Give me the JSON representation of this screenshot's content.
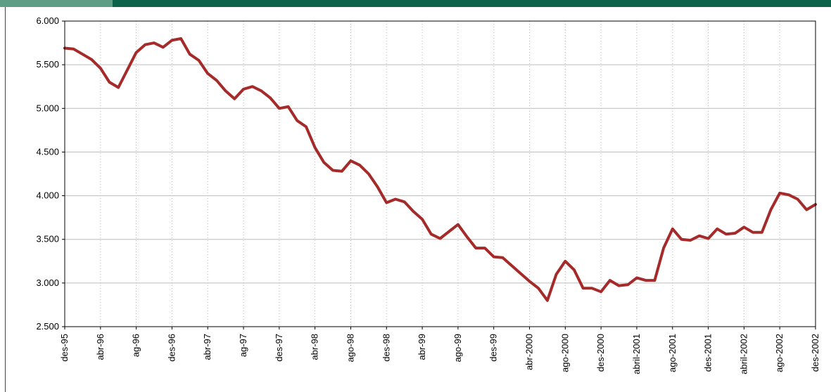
{
  "colors": {
    "header_bar": "#0b6348",
    "header_accent": "#5e9e85",
    "series_line": "#a52a2a",
    "gridline": "#bbbbbb",
    "axis": "#000000"
  },
  "chart_data": {
    "type": "line",
    "title": "",
    "xlabel": "",
    "ylabel": "",
    "ylim": [
      2500,
      6000
    ],
    "y_ticks": [
      "6.000",
      "5.500",
      "5.000",
      "4.500",
      "4.000",
      "3.500",
      "3.000",
      "2.500"
    ],
    "y_tick_values": [
      6000,
      5500,
      5000,
      4500,
      4000,
      3500,
      3000,
      2500
    ],
    "x_ticks": [
      "des-95",
      "abr-96",
      "ag-96",
      "des-96",
      "abr-97",
      "ag-97",
      "des-97",
      "abr-98",
      "ago-98",
      "des-98",
      "abr-99",
      "ago-99",
      "des-99",
      "abr-2000",
      "ago-2000",
      "des-2000",
      "abril-2001",
      "ago-2001",
      "des-2001",
      "abril-2002",
      "ago-2002",
      "des-2002"
    ],
    "grid": {
      "horizontal": true,
      "vertical": true,
      "vertical_style": "dotted"
    },
    "legend": "none",
    "series": [
      {
        "points": [
          [
            0,
            5690
          ],
          [
            1,
            5680
          ],
          [
            2,
            5620
          ],
          [
            3,
            5560
          ],
          [
            4,
            5460
          ],
          [
            5,
            5300
          ],
          [
            6,
            5240
          ],
          [
            7,
            5440
          ],
          [
            8,
            5640
          ],
          [
            9,
            5730
          ],
          [
            10,
            5750
          ],
          [
            11,
            5700
          ],
          [
            12,
            5780
          ],
          [
            13,
            5800
          ],
          [
            14,
            5620
          ],
          [
            15,
            5550
          ],
          [
            16,
            5400
          ],
          [
            17,
            5320
          ],
          [
            18,
            5200
          ],
          [
            19,
            5110
          ],
          [
            20,
            5220
          ],
          [
            21,
            5250
          ],
          [
            22,
            5200
          ],
          [
            23,
            5120
          ],
          [
            24,
            5000
          ],
          [
            25,
            5020
          ],
          [
            26,
            4860
          ],
          [
            27,
            4790
          ],
          [
            28,
            4550
          ],
          [
            29,
            4380
          ],
          [
            30,
            4290
          ],
          [
            31,
            4280
          ],
          [
            32,
            4400
          ],
          [
            33,
            4350
          ],
          [
            34,
            4250
          ],
          [
            35,
            4100
          ],
          [
            36,
            3920
          ],
          [
            37,
            3960
          ],
          [
            38,
            3930
          ],
          [
            39,
            3820
          ],
          [
            40,
            3730
          ],
          [
            41,
            3560
          ],
          [
            42,
            3510
          ],
          [
            43,
            3590
          ],
          [
            44,
            3670
          ],
          [
            45,
            3530
          ],
          [
            46,
            3400
          ],
          [
            47,
            3400
          ],
          [
            48,
            3300
          ],
          [
            49,
            3290
          ],
          [
            50,
            3200
          ],
          [
            51,
            3110
          ],
          [
            52,
            3020
          ],
          [
            53,
            2940
          ],
          [
            54,
            2800
          ],
          [
            55,
            3100
          ],
          [
            56,
            3250
          ],
          [
            57,
            3150
          ],
          [
            58,
            2940
          ],
          [
            59,
            2940
          ],
          [
            60,
            2900
          ],
          [
            61,
            3030
          ],
          [
            62,
            2970
          ],
          [
            63,
            2980
          ],
          [
            64,
            3060
          ],
          [
            65,
            3030
          ],
          [
            66,
            3030
          ],
          [
            67,
            3400
          ],
          [
            68,
            3620
          ],
          [
            69,
            3500
          ],
          [
            70,
            3490
          ],
          [
            71,
            3540
          ],
          [
            72,
            3510
          ],
          [
            73,
            3620
          ],
          [
            74,
            3560
          ],
          [
            75,
            3570
          ],
          [
            76,
            3640
          ],
          [
            77,
            3580
          ],
          [
            78,
            3580
          ],
          [
            79,
            3840
          ],
          [
            80,
            4030
          ],
          [
            81,
            4010
          ],
          [
            82,
            3960
          ],
          [
            83,
            3840
          ],
          [
            84,
            3900
          ]
        ]
      }
    ]
  }
}
